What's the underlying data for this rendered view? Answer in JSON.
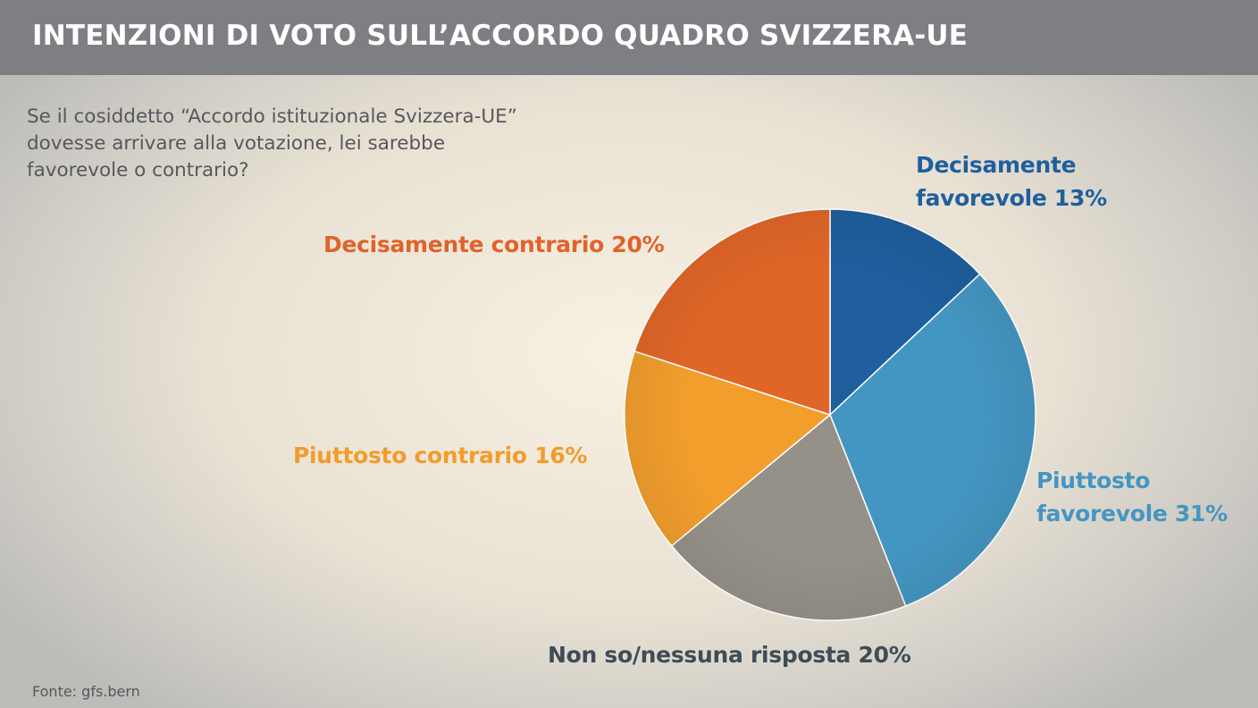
{
  "header": {
    "title": "INTENZIONI DI VOTO SULL’ACCORDO QUADRO SVIZZERA-UE"
  },
  "question": {
    "lines": [
      "Se il cosiddetto “Accordo istituzionale Svizzera-UE”",
      "dovesse arrivare alla votazione, lei sarebbe",
      "favorevole o contrario?"
    ]
  },
  "chart_data": {
    "type": "pie",
    "title": "INTENZIONI DI VOTO SULL’ACCORDO QUADRO SVIZZERA-UE",
    "subtitle": "Se il cosiddetto “Accordo istituzionale Svizzera-UE” dovesse arrivare alla votazione, lei sarebbe favorevole o contrario?",
    "unit": "%",
    "start": "12 o'clock",
    "direction": "clockwise",
    "slices": [
      {
        "label": "Decisamente favorevole",
        "value": 13,
        "color": "#1f5f9e",
        "label_lines": [
          "Decisamente",
          "favorevole 13%"
        ]
      },
      {
        "label": "Piuttosto favorevole",
        "value": 31,
        "color": "#4496c2",
        "label_lines": [
          "Piuttosto",
          "favorevole 31%"
        ]
      },
      {
        "label": "Non so/nessuna risposta",
        "value": 20,
        "color": "#959189",
        "label_lines": [
          "Non so/nessuna risposta 20%"
        ]
      },
      {
        "label": "Piuttosto contrario",
        "value": 16,
        "color": "#f19e2d",
        "label_lines": [
          "Piuttosto contrario 16%"
        ]
      },
      {
        "label": "Decisamente contrario",
        "value": 20,
        "color": "#e06628",
        "label_lines": [
          "Decisamente contrario 20%"
        ]
      }
    ]
  },
  "label_colors": {
    "decisamente_favorevole": "#1f5f9e",
    "piuttosto_favorevole": "#4496c2",
    "non_so": "#3f4c57",
    "piuttosto_contrario": "#f29c2b",
    "decisamente_contrario": "#e0632a"
  },
  "source": {
    "text": "Fonte: gfs.bern"
  }
}
